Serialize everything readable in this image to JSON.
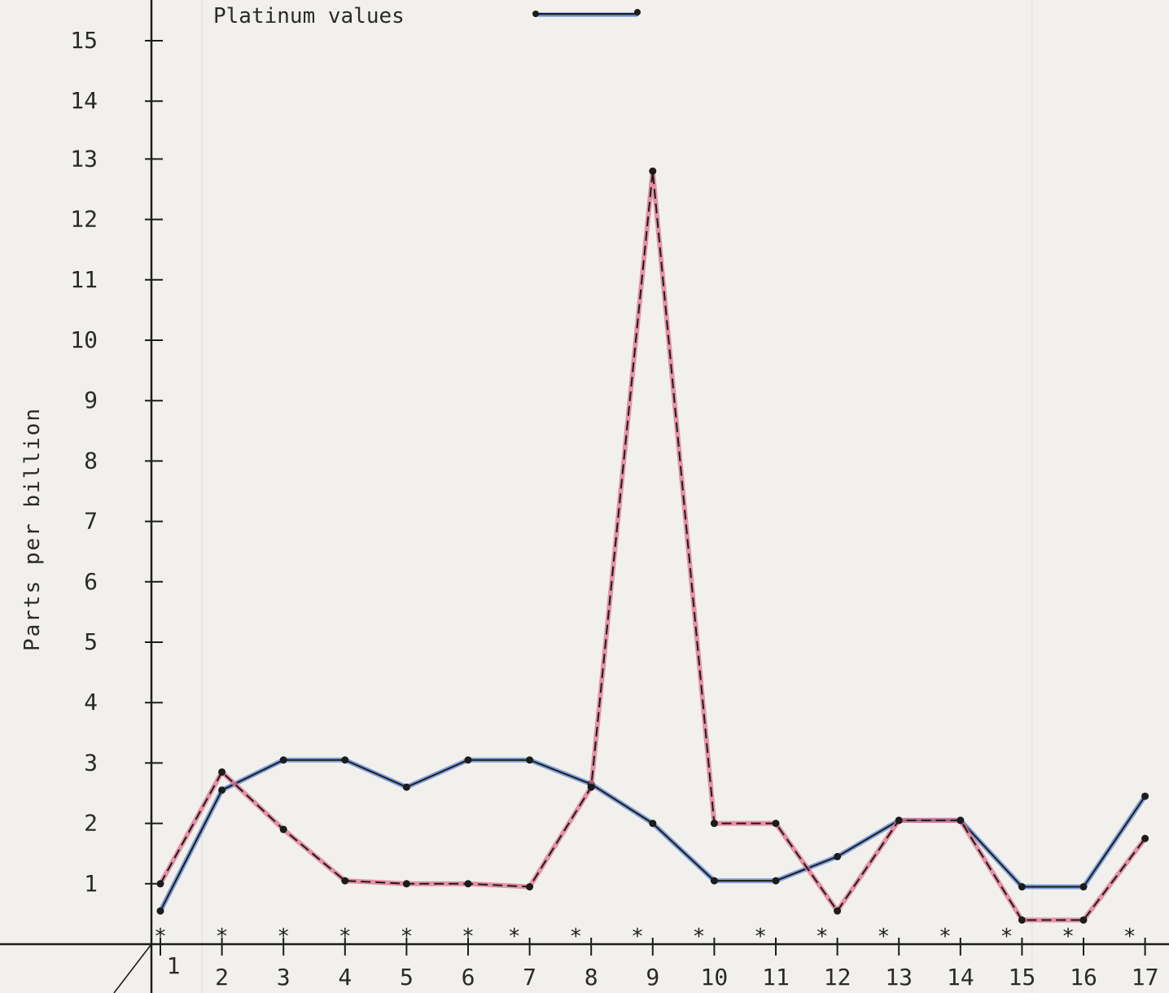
{
  "chart_data": {
    "type": "line",
    "ylabel": "Parts per billion",
    "legend": {
      "label": "Platinum values",
      "position": "top-left"
    },
    "y_ticks": [
      "15",
      "14",
      "13",
      "12",
      "11",
      "10",
      "9",
      "8",
      "7",
      "6",
      "5",
      "4",
      "3",
      "2",
      "1"
    ],
    "y_tick_values": [
      15,
      14,
      13,
      12,
      11,
      10,
      9,
      8,
      7,
      6,
      5,
      4,
      3,
      2,
      1
    ],
    "x_ticks": [
      "1",
      "2",
      "3",
      "4",
      "5",
      "6",
      "7",
      "8",
      "9",
      "10",
      "11",
      "12",
      "13",
      "14",
      "15",
      "16",
      "17"
    ],
    "ylim": [
      0,
      15.3
    ],
    "grid": false,
    "series": [
      {
        "name": "Platinum values",
        "color": "#1c1c1c",
        "highlight": "#5b86d6",
        "dash": "solid",
        "points": [
          [
            1,
            0.55
          ],
          [
            2,
            2.55
          ],
          [
            3,
            3.05
          ],
          [
            4,
            3.05
          ],
          [
            5,
            2.6
          ],
          [
            6,
            3.05
          ],
          [
            7,
            3.05
          ],
          [
            8,
            2.65
          ],
          [
            9,
            2.0
          ],
          [
            10,
            1.05
          ],
          [
            11,
            1.05
          ],
          [
            12,
            1.45
          ],
          [
            13,
            2.05
          ],
          [
            14,
            2.05
          ],
          [
            15,
            0.95
          ],
          [
            16,
            0.95
          ],
          [
            17,
            2.45
          ]
        ]
      },
      {
        "color": "#1c1c1c",
        "highlight": "#e0728e",
        "dash": "dashed",
        "points": [
          [
            1,
            1.0
          ],
          [
            2,
            2.85
          ],
          [
            3,
            1.9
          ],
          [
            4,
            1.05
          ],
          [
            5,
            1.0
          ],
          [
            6,
            1.0
          ],
          [
            7,
            0.95
          ],
          [
            8,
            2.6
          ],
          [
            9,
            12.8
          ],
          [
            10,
            2.0
          ],
          [
            11,
            2.0
          ],
          [
            12,
            0.55
          ],
          [
            13,
            2.05
          ],
          [
            14,
            2.05
          ],
          [
            15,
            0.4
          ],
          [
            16,
            0.4
          ],
          [
            17,
            1.75
          ]
        ]
      }
    ],
    "markers": {
      "symbol": "*",
      "x": [
        1,
        2,
        3,
        4,
        5,
        6,
        6.75,
        7.75,
        8.75,
        9.75,
        10.75,
        11.75,
        12.75,
        13.75,
        14.75,
        15.75,
        16.75
      ]
    }
  }
}
